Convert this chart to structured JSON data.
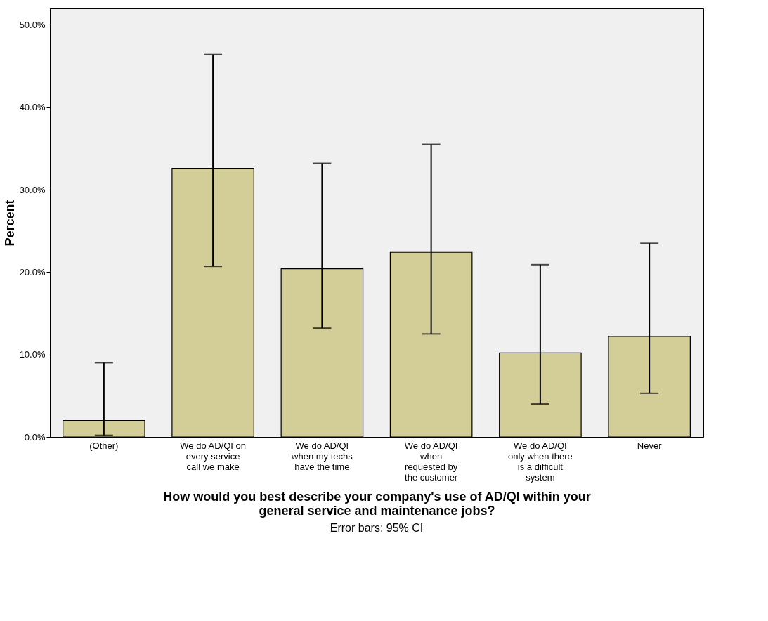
{
  "chart_data": {
    "type": "bar",
    "xlabel": "How would you best describe your company's use of AD/QI within your\ngeneral service and maintenance jobs?",
    "ylabel": "Percent",
    "categories": [
      "(Other)",
      "We do AD/QI on\nevery service\ncall we make",
      "We do AD/QI\nwhen my techs\nhave the time",
      "We do AD/QI\nwhen\nrequested by\nthe customer",
      "We do AD/QI\nonly when there\nis a difficult\nsystem",
      "Never"
    ],
    "values": [
      2.0,
      32.6,
      20.4,
      22.4,
      10.2,
      12.2
    ],
    "errors": [
      [
        0.2,
        9.0
      ],
      [
        20.7,
        46.4
      ],
      [
        13.2,
        33.2
      ],
      [
        12.5,
        35.5
      ],
      [
        4.0,
        20.9
      ],
      [
        5.3,
        23.5
      ]
    ],
    "color": "#d3ce97",
    "ylim": [
      0,
      52
    ],
    "yticks": [
      {
        "value": 0,
        "label": "0.0%"
      },
      {
        "value": 10,
        "label": "10.0%"
      },
      {
        "value": 20,
        "label": "20.0%"
      },
      {
        "value": 30,
        "label": "30.0%"
      },
      {
        "value": 40,
        "label": "40.0%"
      },
      {
        "value": 50,
        "label": "50.0%"
      }
    ],
    "grid": false,
    "annotations": [
      "Error bars: 95% CI"
    ]
  }
}
